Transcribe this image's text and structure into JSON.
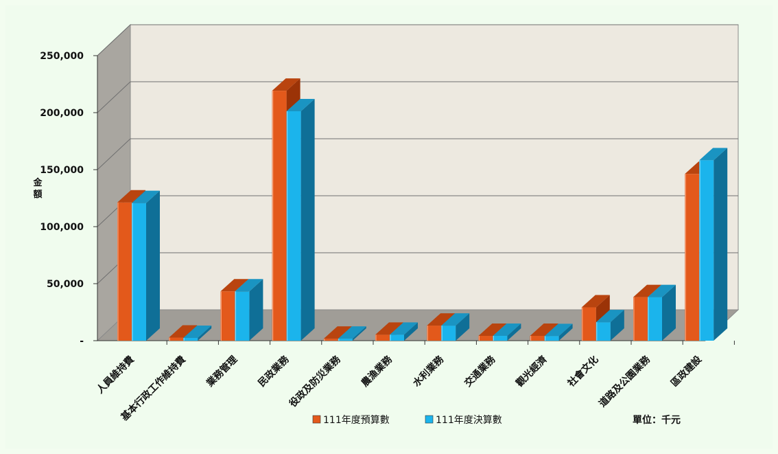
{
  "chart_data": {
    "type": "bar",
    "ylabel": "金額",
    "unit_note": "單位：千元",
    "ylim": [
      0,
      250000
    ],
    "y_ticks": [
      "-",
      "50,000",
      "100,000",
      "150,000",
      "200,000",
      "250,000"
    ],
    "categories": [
      "人員維持費",
      "基本行政工作維持費",
      "業務管理",
      "民政業務",
      "役政及防災業務",
      "農漁業務",
      "水利業務",
      "交通業務",
      "觀光經濟",
      "社會文化",
      "道路及公園業務",
      "區政建設"
    ],
    "series": [
      {
        "name": "111年度預算數",
        "values": [
          120000,
          1500,
          42000,
          218000,
          500,
          4000,
          12000,
          3000,
          3000,
          28000,
          37000,
          145000
        ]
      },
      {
        "name": "111年度決算數",
        "values": [
          119500,
          1200,
          42000,
          200000,
          500,
          4000,
          12000,
          3000,
          2800,
          15000,
          37000,
          157000
        ]
      }
    ],
    "legend_position": "bottom",
    "grid": true,
    "colors": {
      "series1": "#e3591b",
      "series2": "#1bb4ec"
    }
  }
}
